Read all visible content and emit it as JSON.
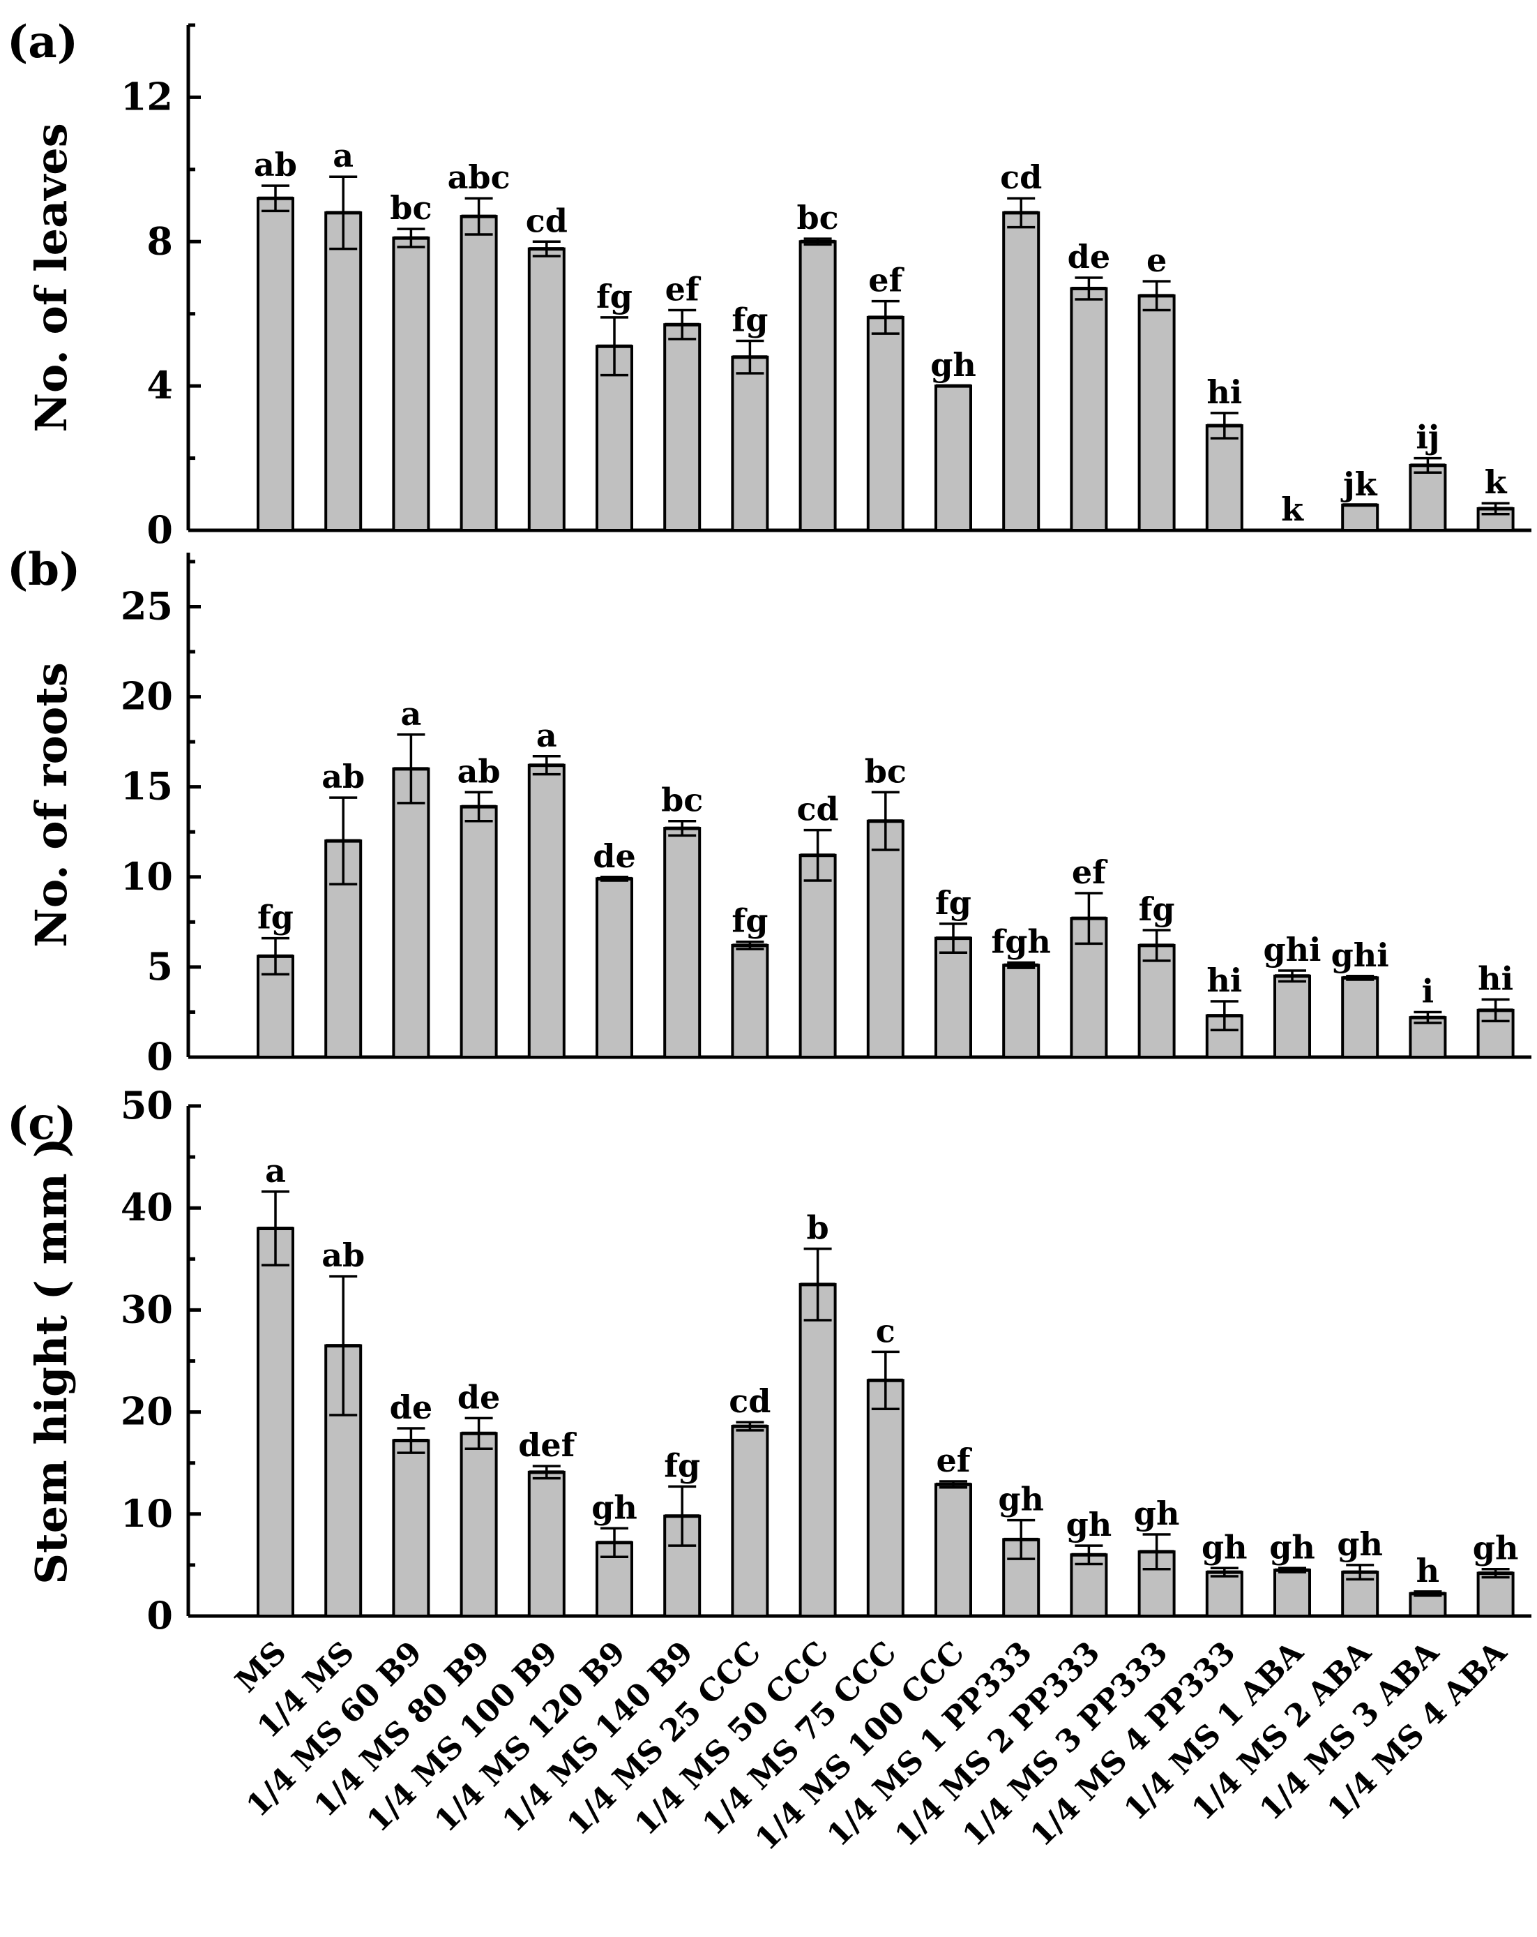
{
  "chart_data": {
    "type": "bar",
    "categories": [
      "MS",
      "1/4 MS",
      "1/4 MS 60 B9",
      "1/4 MS 80 B9",
      "1/4 MS 100 B9",
      "1/4 MS 120 B9",
      "1/4 MS 140 B9",
      "1/4 MS 25 CCC",
      "1/4 MS 50 CCC",
      "1/4 MS 75 CCC",
      "1/4 MS 100 CCC",
      "1/4 MS 1 PP333",
      "1/4 MS 2 PP333",
      "1/4 MS 3 PP333",
      "1/4 MS 4 PP333",
      "1/4 MS 1 ABA",
      "1/4 MS 2 ABA",
      "1/4 MS 3 ABA",
      "1/4 MS 4 ABA"
    ],
    "panels": [
      {
        "panel_label": "(a)",
        "ylabel": "No. of leaves",
        "ylim": [
          0,
          14
        ],
        "yticks": [
          0,
          4,
          8,
          12
        ],
        "values": [
          9.2,
          8.8,
          8.1,
          8.7,
          7.8,
          5.1,
          5.7,
          4.8,
          8.0,
          5.9,
          4.0,
          8.8,
          6.7,
          6.5,
          2.9,
          0.0,
          0.7,
          1.8,
          0.6
        ],
        "errors": [
          0.35,
          1.0,
          0.25,
          0.5,
          0.2,
          0.8,
          0.4,
          0.45,
          0.08,
          0.45,
          0.0,
          0.4,
          0.3,
          0.4,
          0.35,
          0.0,
          0.0,
          0.2,
          0.15
        ],
        "letters": [
          "ab",
          "a",
          "bc",
          "abc",
          "cd",
          "fg",
          "ef",
          "fg",
          "bc",
          "ef",
          "gh",
          "cd",
          "de",
          "e",
          "hi",
          "k",
          "jk",
          "ij",
          "k"
        ]
      },
      {
        "panel_label": "(b)",
        "ylabel": "No. of roots",
        "ylim": [
          0,
          28
        ],
        "yticks": [
          0,
          5,
          10,
          15,
          20,
          25
        ],
        "values": [
          5.6,
          12.0,
          16.0,
          13.9,
          16.2,
          9.9,
          12.7,
          6.2,
          11.2,
          13.1,
          6.6,
          5.1,
          7.7,
          6.2,
          2.3,
          4.5,
          4.4,
          2.2,
          2.6
        ],
        "errors": [
          1.0,
          2.4,
          1.9,
          0.8,
          0.5,
          0.1,
          0.4,
          0.2,
          1.4,
          1.6,
          0.8,
          0.15,
          1.4,
          0.85,
          0.8,
          0.3,
          0.1,
          0.3,
          0.6
        ],
        "letters": [
          "fg",
          "ab",
          "a",
          "ab",
          "a",
          "de",
          "bc",
          "fg",
          "cd",
          "bc",
          "fg",
          "fgh",
          "ef",
          "fg",
          "hi",
          "ghi",
          "ghi",
          "i",
          "hi"
        ]
      },
      {
        "panel_label": "(c)",
        "ylabel": "Stem hight ( mm )",
        "ylim": [
          0,
          50
        ],
        "yticks": [
          0,
          10,
          20,
          30,
          40,
          50
        ],
        "values": [
          38.0,
          26.5,
          17.2,
          17.9,
          14.1,
          7.2,
          9.8,
          18.6,
          32.5,
          23.1,
          12.9,
          7.5,
          6.0,
          6.3,
          4.3,
          4.5,
          4.3,
          2.2,
          4.2
        ],
        "errors": [
          3.6,
          6.8,
          1.2,
          1.5,
          0.6,
          1.4,
          2.9,
          0.4,
          3.5,
          2.8,
          0.3,
          1.9,
          0.9,
          1.7,
          0.4,
          0.2,
          0.7,
          0.2,
          0.4
        ],
        "letters": [
          "a",
          "ab",
          "de",
          "de",
          "def",
          "gh",
          "fg",
          "cd",
          "b",
          "c",
          "ef",
          "gh",
          "gh",
          "gh",
          "gh",
          "gh",
          "gh",
          "h",
          "gh"
        ]
      }
    ]
  }
}
